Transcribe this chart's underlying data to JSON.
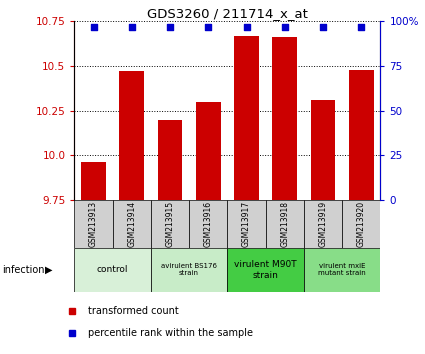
{
  "title": "GDS3260 / 211714_x_at",
  "samples": [
    "GSM213913",
    "GSM213914",
    "GSM213915",
    "GSM213916",
    "GSM213917",
    "GSM213918",
    "GSM213919",
    "GSM213920"
  ],
  "red_values": [
    9.96,
    10.47,
    10.2,
    10.3,
    10.67,
    10.66,
    10.31,
    10.48
  ],
  "blue_values": [
    97,
    97,
    97,
    97,
    97,
    97,
    97,
    97
  ],
  "ylim_left": [
    9.75,
    10.75
  ],
  "ylim_right": [
    0,
    100
  ],
  "yticks_left": [
    9.75,
    10.0,
    10.25,
    10.5,
    10.75
  ],
  "yticks_right": [
    0,
    25,
    50,
    75,
    100
  ],
  "ytick_labels_right": [
    "0",
    "25",
    "50",
    "75",
    "100%"
  ],
  "bar_color": "#cc0000",
  "dot_color": "#0000cc",
  "groups": [
    {
      "label": "control",
      "start": 0,
      "end": 2,
      "color": "#d8f0d8",
      "fontsize": 9
    },
    {
      "label": "avirulent BS176\nstrain",
      "start": 2,
      "end": 4,
      "color": "#c8ecc8",
      "fontsize": 7
    },
    {
      "label": "virulent M90T\nstrain",
      "start": 4,
      "end": 6,
      "color": "#44cc44",
      "fontsize": 9
    },
    {
      "label": "virulent mxiE\nmutant strain",
      "start": 6,
      "end": 8,
      "color": "#88dd88",
      "fontsize": 7
    }
  ],
  "infection_label": "infection",
  "legend_red": "transformed count",
  "legend_blue": "percentile rank within the sample",
  "sample_bg_color": "#d0d0d0",
  "fig_width": 4.25,
  "fig_height": 3.54,
  "dpi": 100
}
